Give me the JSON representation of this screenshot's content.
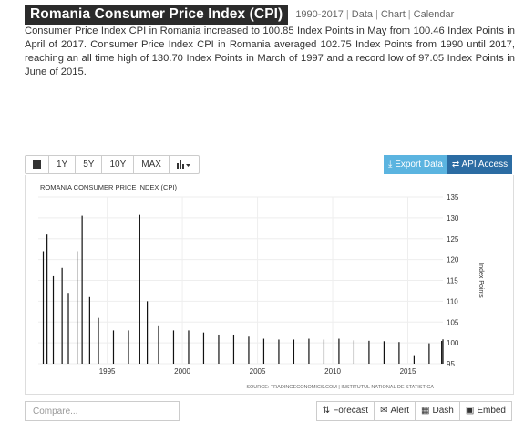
{
  "header": {
    "title": "Romania Consumer Price Index (CPI)",
    "links": [
      "1990-2017",
      "Data",
      "Chart",
      "Calendar"
    ]
  },
  "description": "Consumer Price Index CPI in Romania increased to 100.85 Index Points in May from 100.46 Index Points in April of 2017. Consumer Price Index CPI in Romania averaged 102.75 Index Points from 1990 until 2017, reaching an all time high of 130.70 Index Points in March of 1997 and a record low of 97.05 Index Points in June of 2015.",
  "toolbar": {
    "ranges": [
      "1Y",
      "5Y",
      "10Y",
      "MAX"
    ],
    "export_label": "Export Data",
    "api_label": "API Access"
  },
  "footer": {
    "compare_placeholder": "Compare...",
    "buttons": [
      "Forecast",
      "Alert",
      "Dash",
      "Embed"
    ]
  },
  "colors": {
    "export": "#5bb4e0",
    "api": "#2b6ca3",
    "title_bg": "#2b2b2b"
  },
  "chart_data": {
    "type": "bar",
    "title": "ROMANIA CONSUMER PRICE INDEX (CPI)",
    "ylabel": "Index Points",
    "source": "SOURCE: TRADINGECONOMICS.COM | INSTITUTUL NATIONAL DE STATISTICA",
    "ylim": [
      95,
      135
    ],
    "yticks": [
      95,
      100,
      105,
      110,
      115,
      120,
      125,
      130,
      135
    ],
    "xticks": [
      "1995",
      "2000",
      "2005",
      "2010",
      "2015"
    ],
    "x_range": [
      "1990-06",
      "2017-05"
    ],
    "series": [
      {
        "values": [
          {
            "date": "1990-10",
            "value": 122
          },
          {
            "date": "1991-01",
            "value": 126
          },
          {
            "date": "1991-06",
            "value": 116
          },
          {
            "date": "1992-01",
            "value": 118
          },
          {
            "date": "1992-06",
            "value": 112
          },
          {
            "date": "1993-01",
            "value": 122
          },
          {
            "date": "1993-05",
            "value": 130.5
          },
          {
            "date": "1993-11",
            "value": 111
          },
          {
            "date": "1994-06",
            "value": 106
          },
          {
            "date": "1995-06",
            "value": 103
          },
          {
            "date": "1996-06",
            "value": 103
          },
          {
            "date": "1997-03",
            "value": 130.7
          },
          {
            "date": "1997-09",
            "value": 110
          },
          {
            "date": "1998-06",
            "value": 104
          },
          {
            "date": "1999-06",
            "value": 103
          },
          {
            "date": "2000-06",
            "value": 103
          },
          {
            "date": "2001-06",
            "value": 102.5
          },
          {
            "date": "2002-06",
            "value": 102
          },
          {
            "date": "2003-06",
            "value": 102
          },
          {
            "date": "2004-06",
            "value": 101.5
          },
          {
            "date": "2005-06",
            "value": 101
          },
          {
            "date": "2006-06",
            "value": 100.8
          },
          {
            "date": "2007-06",
            "value": 100.8
          },
          {
            "date": "2008-06",
            "value": 101
          },
          {
            "date": "2009-06",
            "value": 100.8
          },
          {
            "date": "2010-06",
            "value": 101
          },
          {
            "date": "2011-06",
            "value": 100.6
          },
          {
            "date": "2012-06",
            "value": 100.5
          },
          {
            "date": "2013-06",
            "value": 100.4
          },
          {
            "date": "2014-06",
            "value": 100.2
          },
          {
            "date": "2015-06",
            "value": 97.05
          },
          {
            "date": "2016-06",
            "value": 99.9
          },
          {
            "date": "2017-04",
            "value": 100.46
          },
          {
            "date": "2017-05",
            "value": 100.85
          }
        ]
      }
    ]
  }
}
